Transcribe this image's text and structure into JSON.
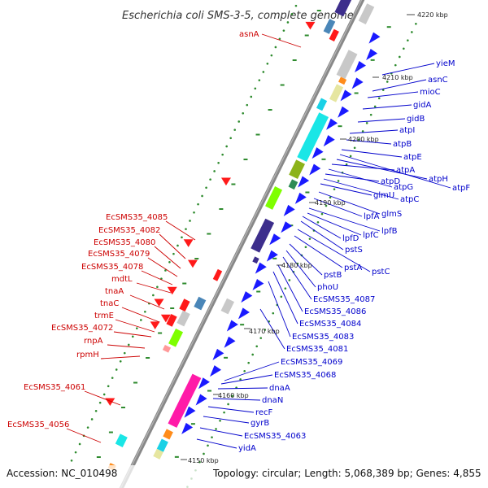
{
  "title": "Escherichia coli SMS-3-5, complete genome",
  "footer": {
    "accession": "Accession: NC_010498",
    "summary": "Topology: circular; Length: 5,068,389 bp; Genes: 4,855"
  },
  "colors": {
    "backbone": "#8c8c8c",
    "forward_gene": "#1a1aff",
    "reverse_gene": "#ff1a1a",
    "gc_dot": "#2e8b2e",
    "red_label": "#cc0000",
    "blue_label": "#0000cc",
    "magenta": "#ff1aa8",
    "cyan": "#1ae6e6",
    "olive": "#8cb31a",
    "purple": "#3d2e8c",
    "gray": "#c8c8c8"
  },
  "ticks": [
    "4220 kbp",
    "4210 kbp",
    "4200 kbp",
    "4190 kbp",
    "4180 kbp",
    "4170 kbp",
    "4160 kbp",
    "4150 kbp"
  ],
  "left_labels": [
    "asnA",
    "EcSMS35_4085",
    "EcSMS35_4082",
    "EcSMS35_4080",
    "EcSMS35_4079",
    "EcSMS35_4078",
    "mdtL",
    "tnaA",
    "tnaC",
    "trmE",
    "EcSMS35_4072",
    "rnpA",
    "rpmH",
    "EcSMS35_4061",
    "EcSMS35_4056"
  ],
  "right_labels": [
    "yieM",
    "asnC",
    "mioC",
    "gidA",
    "gidB",
    "atpI",
    "atpB",
    "atpE",
    "atpF",
    "atpH",
    "atpA",
    "atpG",
    "atpD",
    "atpC",
    "glmU",
    "glmS",
    "lpfA",
    "lpfB",
    "lpfC",
    "lpfD",
    "pstS",
    "pstC",
    "pstA",
    "pstB",
    "phoU",
    "EcSMS35_4087",
    "EcSMS35_4086",
    "EcSMS35_4084",
    "EcSMS35_4083",
    "EcSMS35_4081",
    "EcSMS35_4069",
    "EcSMS35_4068",
    "dnaA",
    "dnaN",
    "recF",
    "gyrB",
    "EcSMS35_4063",
    "yidA"
  ]
}
